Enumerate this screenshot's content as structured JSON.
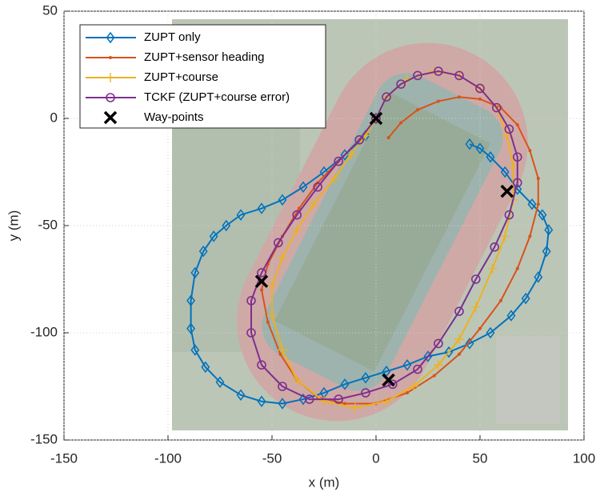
{
  "chart_data": {
    "type": "line",
    "xlabel": "x (m)",
    "ylabel": "y (m)",
    "xlim": [
      -150,
      100
    ],
    "ylim": [
      -150,
      50
    ],
    "xticks": [
      -150,
      -100,
      -50,
      0,
      50,
      100
    ],
    "yticks": [
      -150,
      -100,
      -50,
      0,
      50
    ],
    "grid": true,
    "legend": "upper left",
    "series": [
      {
        "name": "ZUPT only",
        "color": "#0072bd",
        "marker": "diamond",
        "x": [
          0,
          -5,
          -15,
          -25,
          -35,
          -45,
          -55,
          -65,
          -72,
          -78,
          -83,
          -87,
          -89,
          -89,
          -87,
          -82,
          -75,
          -65,
          -55,
          -45,
          -35,
          -25,
          -15,
          -5,
          5,
          15,
          25,
          35,
          45,
          55,
          65,
          72,
          78,
          82,
          83,
          80,
          75,
          68,
          62,
          55,
          50,
          45
        ],
        "y": [
          0,
          -8,
          -17,
          -25,
          -32,
          -38,
          -42,
          -45,
          -50,
          -55,
          -62,
          -72,
          -85,
          -98,
          -108,
          -116,
          -123,
          -129,
          -132,
          -133,
          -131,
          -128,
          -124,
          -121,
          -118,
          -115,
          -111,
          -109,
          -105,
          -100,
          -92,
          -84,
          -74,
          -62,
          -52,
          -45,
          -40,
          -33,
          -25,
          -18,
          -14,
          -12
        ]
      },
      {
        "name": "ZUPT+sensor heading",
        "color": "#d95319",
        "marker": "dot",
        "x": [
          6,
          12,
          20,
          30,
          40,
          50,
          60,
          68,
          74,
          78,
          78,
          74,
          68,
          60,
          50,
          40,
          28,
          15,
          0,
          -15,
          -28,
          -38,
          -46,
          -52,
          -55,
          -52,
          -45,
          -37,
          -28,
          -18,
          -8,
          0
        ],
        "y": [
          -9,
          -2,
          4,
          8,
          10,
          9,
          5,
          -3,
          -15,
          -28,
          -40,
          -55,
          -70,
          -85,
          -98,
          -110,
          -120,
          -128,
          -133,
          -133,
          -130,
          -122,
          -110,
          -95,
          -80,
          -68,
          -55,
          -42,
          -30,
          -20,
          -10,
          0
        ]
      },
      {
        "name": "ZUPT+course",
        "color": "#edb120",
        "marker": "plus",
        "x": [
          0,
          5,
          15,
          28,
          40,
          50,
          58,
          63,
          66,
          66,
          62,
          56,
          48,
          40,
          30,
          18,
          5,
          -10,
          -25,
          -38,
          -45,
          -50,
          -50,
          -45,
          -38,
          -30,
          -20,
          -12,
          -5,
          0
        ],
        "y": [
          0,
          10,
          18,
          22,
          20,
          14,
          5,
          -8,
          -22,
          -38,
          -55,
          -70,
          -88,
          -103,
          -115,
          -125,
          -132,
          -135,
          -132,
          -122,
          -108,
          -92,
          -78,
          -65,
          -52,
          -40,
          -28,
          -17,
          -8,
          0
        ]
      },
      {
        "name": "TCKF (ZUPT+course error)",
        "color": "#7e2f8e",
        "marker": "circle",
        "x": [
          0,
          5,
          12,
          20,
          30,
          40,
          50,
          58,
          64,
          68,
          68,
          64,
          57,
          48,
          40,
          30,
          20,
          8,
          -5,
          -18,
          -32,
          -45,
          -55,
          -60,
          -60,
          -55,
          -47,
          -38,
          -28,
          -18,
          -8,
          0
        ],
        "y": [
          0,
          10,
          16,
          20,
          22,
          20,
          14,
          5,
          -5,
          -18,
          -30,
          -45,
          -60,
          -75,
          -90,
          -105,
          -117,
          -124,
          -128,
          -131,
          -131,
          -125,
          -115,
          -100,
          -85,
          -72,
          -58,
          -45,
          -32,
          -20,
          -10,
          0
        ]
      },
      {
        "name": "Way-points",
        "color": "#000000",
        "marker": "x",
        "linestyle": "none",
        "x": [
          0,
          63,
          6,
          -55
        ],
        "y": [
          0,
          -34,
          -122,
          -76
        ]
      }
    ]
  }
}
